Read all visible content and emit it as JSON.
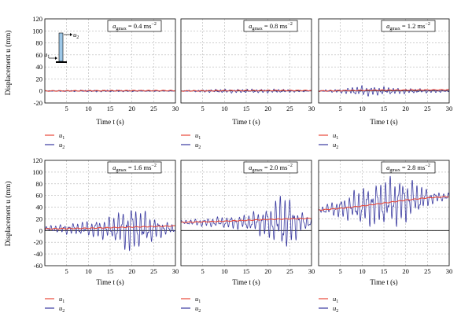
{
  "figure": {
    "ylabel_rows": [
      "Displacement u (mm)",
      "Displacement u (mm)"
    ],
    "xlabel": "Time t (s)"
  },
  "colors": {
    "u1": "#e8483a",
    "u2": "#3a3aa0",
    "grid": "#b5b5b5",
    "zero": "#000000"
  },
  "legend": [
    {
      "key": "u1",
      "base": "u",
      "sub": "1"
    },
    {
      "key": "u2",
      "base": "u",
      "sub": "2"
    }
  ],
  "inset": {
    "u1": "u",
    "u1_sub": "1",
    "u2": "u",
    "u2_sub": "2"
  },
  "chart_data": [
    {
      "type": "line",
      "panel": 1,
      "annotation": "a_gmax = 0.4 ms^-2",
      "ann_base": "a",
      "ann_sub": "gmax",
      "ann_text": " = 0.4 ms",
      "ann_sup": "−2",
      "xlabel": "Time t (s)",
      "ylabel": "Displacement u (mm)",
      "xlim": [
        0,
        30
      ],
      "ylim": [
        -20,
        120
      ],
      "xticks": [
        5,
        10,
        15,
        20,
        25,
        30
      ],
      "yticks": [
        -20,
        0,
        20,
        40,
        60,
        80,
        100,
        120
      ],
      "series": [
        {
          "name": "u1",
          "x": [
            0,
            10,
            20,
            30
          ],
          "y": [
            0,
            0.3,
            0.5,
            0.6
          ]
        },
        {
          "name": "u2",
          "amp_env": [
            [
              0,
              0.5
            ],
            [
              5,
              1
            ],
            [
              10,
              1.5
            ],
            [
              15,
              1.5
            ],
            [
              20,
              1.2
            ],
            [
              30,
              0.6
            ]
          ],
          "drift": 0
        }
      ]
    },
    {
      "type": "line",
      "panel": 2,
      "annotation": "a_gmax = 0.8 ms^-2",
      "ann_base": "a",
      "ann_sub": "gmax",
      "ann_text": " = 0.8 ms",
      "ann_sup": "−2",
      "xlabel": "Time t (s)",
      "ylabel": "",
      "xlim": [
        0,
        30
      ],
      "ylim": [
        -20,
        120
      ],
      "xticks": [
        5,
        10,
        15,
        20,
        25,
        30
      ],
      "yticks": [
        -20,
        0,
        20,
        40,
        60,
        80,
        100,
        120
      ],
      "series": [
        {
          "name": "u1",
          "x": [
            0,
            10,
            20,
            30
          ],
          "y": [
            0,
            0.5,
            0.7,
            0.8
          ]
        },
        {
          "name": "u2",
          "amp_env": [
            [
              0,
              0.5
            ],
            [
              5,
              2
            ],
            [
              10,
              3
            ],
            [
              15,
              3
            ],
            [
              22,
              3
            ],
            [
              30,
              1
            ]
          ],
          "drift": 0
        }
      ]
    },
    {
      "type": "line",
      "panel": 3,
      "annotation": "a_gmax = 1.2 ms^-2",
      "ann_base": "a",
      "ann_sub": "gmax",
      "ann_text": " = 1.2 ms",
      "ann_sup": "−2",
      "xlabel": "Time t (s)",
      "ylabel": "",
      "xlim": [
        0,
        30
      ],
      "ylim": [
        -20,
        120
      ],
      "xticks": [
        5,
        10,
        15,
        20,
        25,
        30
      ],
      "yticks": [
        -20,
        0,
        20,
        40,
        60,
        80,
        100,
        120
      ],
      "series": [
        {
          "name": "u1",
          "x": [
            0,
            10,
            20,
            30
          ],
          "y": [
            0,
            1,
            1.5,
            2
          ]
        },
        {
          "name": "u2",
          "amp_env": [
            [
              0,
              1
            ],
            [
              5,
              3
            ],
            [
              10,
              8
            ],
            [
              13,
              7
            ],
            [
              20,
              4
            ],
            [
              30,
              2
            ]
          ],
          "drift": 0
        }
      ]
    },
    {
      "type": "line",
      "panel": 4,
      "annotation": "a_gmax = 1.6 ms^-2",
      "ann_base": "a",
      "ann_sub": "gmax",
      "ann_text": " = 1.6 ms",
      "ann_sup": "−2",
      "xlabel": "",
      "ylabel": "Displacement u (mm)",
      "xlim": [
        0,
        30
      ],
      "ylim": [
        -60,
        120
      ],
      "xticks": [
        5,
        10,
        15,
        20,
        25,
        30
      ],
      "yticks": [
        -60,
        -40,
        -20,
        0,
        20,
        40,
        60,
        80,
        100,
        120
      ],
      "series": [
        {
          "name": "u1",
          "x": [
            0,
            10,
            20,
            30
          ],
          "y": [
            3,
            4,
            6,
            8
          ]
        },
        {
          "name": "u2",
          "amp_env": [
            [
              0,
              4
            ],
            [
              5,
              8
            ],
            [
              10,
              12
            ],
            [
              15,
              18
            ],
            [
              20,
              40
            ],
            [
              22,
              30
            ],
            [
              26,
              15
            ],
            [
              30,
              6
            ]
          ],
          "drift": 3
        }
      ]
    },
    {
      "type": "line",
      "panel": 5,
      "annotation": "a_gmax = 2.0 ms^-2",
      "ann_base": "a",
      "ann_sub": "gmax",
      "ann_text": " = 2.0 ms",
      "ann_sup": "−2",
      "xlabel": "",
      "ylabel": "",
      "xlim": [
        0,
        30
      ],
      "ylim": [
        -60,
        120
      ],
      "xticks": [
        5,
        10,
        15,
        20,
        25,
        30
      ],
      "yticks": [
        -60,
        -40,
        -20,
        0,
        20,
        40,
        60,
        80,
        100,
        120
      ],
      "series": [
        {
          "name": "u1",
          "x": [
            0,
            10,
            20,
            30
          ],
          "y": [
            14,
            16,
            19,
            21
          ]
        },
        {
          "name": "u2",
          "amp_env": [
            [
              0,
              3
            ],
            [
              8,
              8
            ],
            [
              15,
              12
            ],
            [
              20,
              25
            ],
            [
              24,
              50
            ],
            [
              27,
              20
            ],
            [
              30,
              6
            ]
          ],
          "drift": 14
        }
      ]
    },
    {
      "type": "line",
      "panel": 6,
      "annotation": "a_gmax = 2.8 ms^-2",
      "ann_base": "a",
      "ann_sub": "gmax",
      "ann_text": " = 2.8 ms",
      "ann_sup": "−2",
      "xlabel": "",
      "ylabel": "",
      "xlim": [
        0,
        30
      ],
      "ylim": [
        -60,
        120
      ],
      "xticks": [
        5,
        10,
        15,
        20,
        25,
        30
      ],
      "yticks": [
        -60,
        -40,
        -20,
        0,
        20,
        40,
        60,
        80,
        100,
        120
      ],
      "series": [
        {
          "name": "u1",
          "x": [
            0,
            5,
            10,
            15,
            20,
            25,
            30
          ],
          "y": [
            35,
            38,
            42,
            47,
            52,
            56,
            58
          ]
        },
        {
          "name": "u2",
          "amp_env": [
            [
              0,
              4
            ],
            [
              5,
              15
            ],
            [
              10,
              30
            ],
            [
              15,
              38
            ],
            [
              18,
              40
            ],
            [
              22,
              28
            ],
            [
              26,
              10
            ],
            [
              30,
              5
            ]
          ],
          "drift": 0,
          "follow_u1": true
        }
      ]
    }
  ]
}
